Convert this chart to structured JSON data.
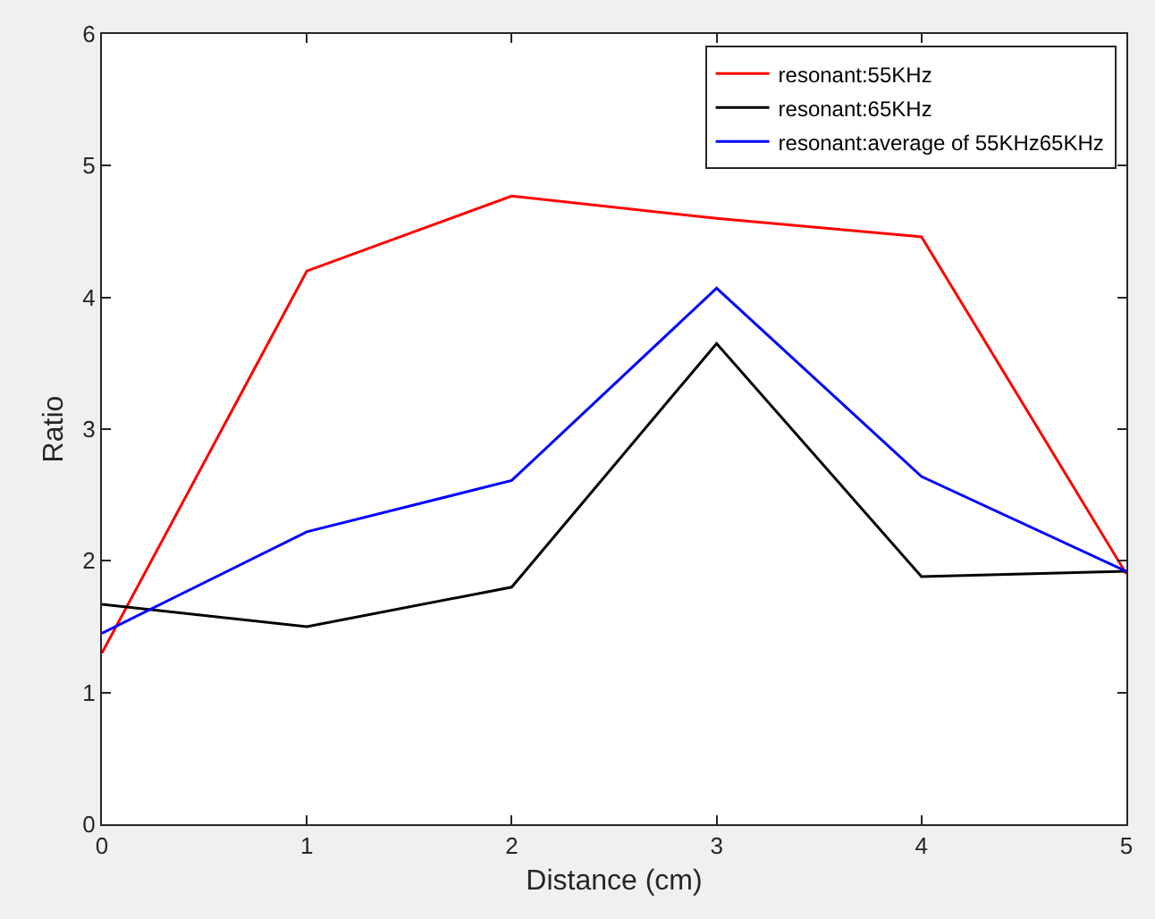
{
  "chart_data": {
    "type": "line",
    "xlabel": "Distance (cm)",
    "ylabel": "Ratio",
    "x": [
      0,
      1,
      2,
      3,
      4,
      5
    ],
    "series": [
      {
        "name": "resonant:55KHz",
        "color": "#ff0000",
        "values": [
          1.3,
          4.2,
          4.77,
          4.6,
          4.46,
          1.9
        ]
      },
      {
        "name": "resonant:65KHz",
        "color": "#000000",
        "values": [
          1.67,
          1.5,
          1.8,
          3.65,
          1.88,
          1.92
        ]
      },
      {
        "name": "resonant:average of 55KHz65KHz",
        "color": "#0000ff",
        "values": [
          1.45,
          2.22,
          2.61,
          4.07,
          2.64,
          1.92
        ]
      }
    ],
    "xlim": [
      0,
      5
    ],
    "xticks": [
      0,
      1,
      2,
      3,
      4,
      5
    ],
    "ylim": [
      0,
      6
    ],
    "yticks": [
      0,
      1,
      2,
      3,
      4,
      5,
      6
    ],
    "grid": false,
    "legend": "top right",
    "marker": "none",
    "line_style": "solid"
  }
}
